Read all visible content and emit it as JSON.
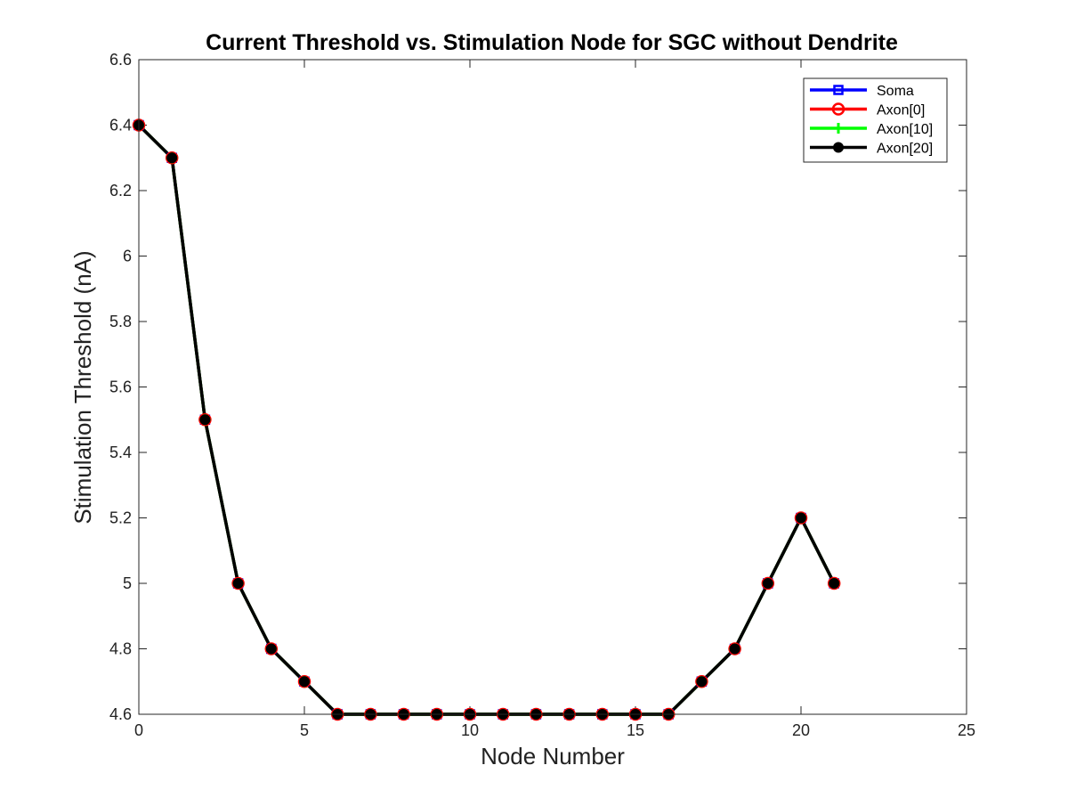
{
  "chart_data": {
    "type": "line",
    "title": "Current Threshold vs. Stimulation Node for SGC without Dendrite",
    "xlabel": "Node Number",
    "ylabel": "Stimulation Threshold (nA)",
    "xlim": [
      0,
      25
    ],
    "ylim": [
      4.6,
      6.6
    ],
    "xticks": [
      0,
      5,
      10,
      15,
      20,
      25
    ],
    "xtick_labels": [
      "0",
      "5",
      "10",
      "15",
      "20",
      "25"
    ],
    "yticks": [
      4.6,
      4.8,
      5.0,
      5.2,
      5.4,
      5.6,
      5.8,
      6.0,
      6.2,
      6.4,
      6.6
    ],
    "ytick_labels": [
      "4.6",
      "4.8",
      "5",
      "5.2",
      "5.4",
      "5.6",
      "5.8",
      "6",
      "6.2",
      "6.4",
      "6.6"
    ],
    "grid": false,
    "legend_position": "top-right",
    "x": [
      0,
      1,
      2,
      3,
      4,
      5,
      6,
      7,
      8,
      9,
      10,
      11,
      12,
      13,
      14,
      15,
      16,
      17,
      18,
      19,
      20,
      21
    ],
    "series": [
      {
        "name": "Soma",
        "color": "#0000ff",
        "marker": "square",
        "values": [
          6.4,
          6.3,
          5.5,
          5.0,
          4.8,
          4.7,
          4.6,
          4.6,
          4.6,
          4.6,
          4.6,
          4.6,
          4.6,
          4.6,
          4.6,
          4.6,
          4.6,
          4.7,
          4.8,
          5.0,
          5.2,
          5.0
        ]
      },
      {
        "name": "Axon[0]",
        "color": "#ff0000",
        "marker": "circle-open",
        "values": [
          6.4,
          6.3,
          5.5,
          5.0,
          4.8,
          4.7,
          4.6,
          4.6,
          4.6,
          4.6,
          4.6,
          4.6,
          4.6,
          4.6,
          4.6,
          4.6,
          4.6,
          4.7,
          4.8,
          5.0,
          5.2,
          5.0
        ]
      },
      {
        "name": "Axon[10]",
        "color": "#00ff00",
        "marker": "plus",
        "values": [
          6.4,
          6.3,
          5.5,
          5.0,
          4.8,
          4.7,
          4.6,
          4.6,
          4.6,
          4.6,
          4.6,
          4.6,
          4.6,
          4.6,
          4.6,
          4.6,
          4.6,
          4.7,
          4.8,
          5.0,
          5.2,
          5.0
        ]
      },
      {
        "name": "Axon[20]",
        "color": "#000000",
        "marker": "circle-filled",
        "values": [
          6.4,
          6.3,
          5.5,
          5.0,
          4.8,
          4.7,
          4.6,
          4.6,
          4.6,
          4.6,
          4.6,
          4.6,
          4.6,
          4.6,
          4.6,
          4.6,
          4.6,
          4.7,
          4.8,
          5.0,
          5.2,
          5.0
        ]
      }
    ]
  }
}
